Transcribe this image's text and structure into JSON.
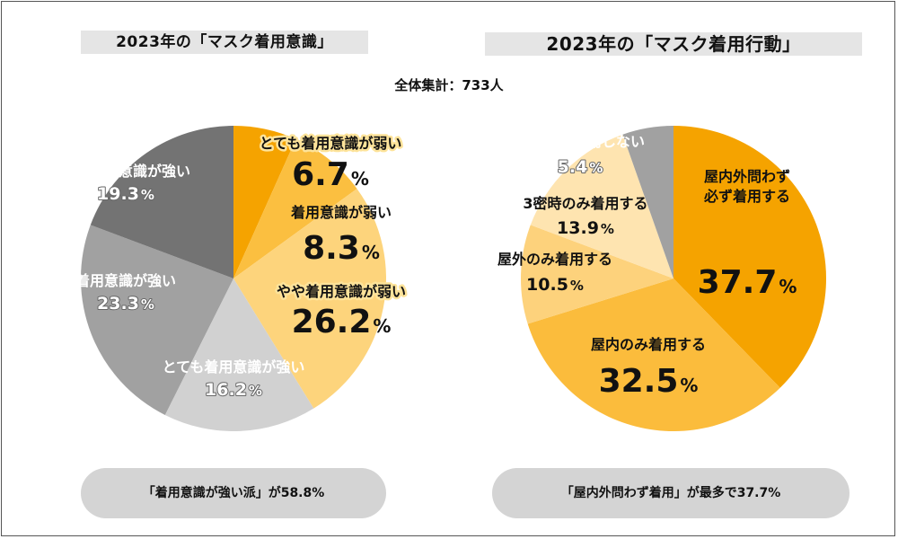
{
  "total_label": "全体集計：733人",
  "colors": {
    "frame": "#555555",
    "title_bg": "#e5e5e5",
    "pill_bg": "#d4d4d4"
  },
  "chart_data": [
    {
      "type": "pie",
      "title": "2023年の「マスク着用意識」",
      "unit": "%",
      "slices": [
        {
          "label": "とても着用意識が弱い",
          "value": 6.7,
          "display": "6.7",
          "color": "#f5a300",
          "text_color": "#111111",
          "highlight": true,
          "big": true
        },
        {
          "label": "着用意識が弱い",
          "value": 8.3,
          "display": "8.3",
          "color": "#fbbf40",
          "text_color": "#111111",
          "highlight": false,
          "big": true
        },
        {
          "label": "やや着用意識が弱い",
          "value": 26.2,
          "display": "26.2",
          "color": "#fdd47c",
          "text_color": "#111111",
          "highlight": true,
          "big": true
        },
        {
          "label": "とても着用意識が強い",
          "value": 16.2,
          "display": "16.2",
          "color": "#d1d1d1",
          "text_color": "#ffffff",
          "highlight": false,
          "big": false
        },
        {
          "label": "着用意識が強い",
          "value": 23.3,
          "display": "23.3",
          "color": "#a1a1a1",
          "text_color": "#ffffff",
          "highlight": false,
          "big": false
        },
        {
          "label": "やや着用意識が強い",
          "value": 19.3,
          "display": "19.3",
          "color": "#737373",
          "text_color": "#ffffff",
          "highlight": false,
          "big": false
        }
      ],
      "summary": "「着用意識が強い派」が58.8%"
    },
    {
      "type": "pie",
      "title": "2023年の「マスク着用行動」",
      "unit": "%",
      "slices": [
        {
          "label": "屋内外問わず\n必ず着用する",
          "value": 37.7,
          "display": "37.7",
          "color": "#f5a300",
          "text_color": "#111111",
          "highlight": false,
          "big": true
        },
        {
          "label": "屋内のみ着用する",
          "value": 32.5,
          "display": "32.5",
          "color": "#fbbc3c",
          "text_color": "#111111",
          "highlight": false,
          "big": true
        },
        {
          "label": "屋外のみ着用する",
          "value": 10.5,
          "display": "10.5",
          "color": "#fdd27c",
          "text_color": "#111111",
          "highlight": false,
          "big": false
        },
        {
          "label": "3密時のみ着用する",
          "value": 13.9,
          "display": "13.9",
          "color": "#fee4b0",
          "text_color": "#111111",
          "highlight": false,
          "big": false
        },
        {
          "label": "基本的に着用しない",
          "value": 5.4,
          "display": "5.4",
          "color": "#a1a1a1",
          "text_color": "#ffffff",
          "highlight": false,
          "big": false
        }
      ],
      "summary": "「屋内外問わず着用」が最多で37.7%"
    }
  ]
}
